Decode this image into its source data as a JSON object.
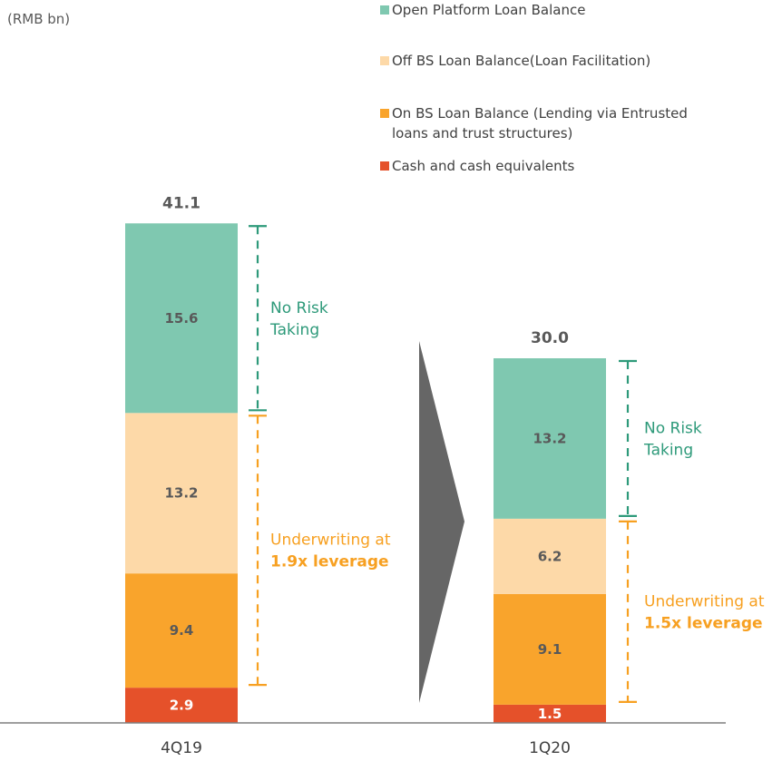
{
  "chart_data": {
    "type": "bar",
    "stacked": true,
    "unit_label": "(RMB bn)",
    "categories": [
      "4Q19",
      "1Q20"
    ],
    "totals": [
      "41.1",
      "30.0"
    ],
    "series": [
      {
        "name": "Cash and cash equivalents",
        "color": "#e5512a",
        "values": [
          2.9,
          1.5
        ],
        "labels": [
          "2.9",
          "1.5"
        ]
      },
      {
        "name": "On BS Loan Balance (Lending via Entrusted loans and trust structures)",
        "color": "#f9a42c",
        "values": [
          9.4,
          9.1
        ],
        "labels": [
          "9.4",
          "9.1"
        ]
      },
      {
        "name": "Off BS Loan Balance(Loan Facilitation)",
        "color": "#fdd9a8",
        "values": [
          13.2,
          6.2
        ],
        "labels": [
          "13.2",
          "6.2"
        ]
      },
      {
        "name": "Open Platform Loan Balance",
        "color": "#7fc8b0",
        "values": [
          15.6,
          13.2
        ],
        "labels": [
          "15.6",
          "13.2"
        ]
      }
    ],
    "legend": {
      "position": "top-right",
      "entries": [
        {
          "lines": [
            "Open Platform Loan Balance"
          ],
          "color": "#7fc8b0"
        },
        {
          "lines": [
            "Off BS Loan Balance(Loan Facilitation)"
          ],
          "color": "#fdd9a8"
        },
        {
          "lines": [
            "On BS Loan Balance (Lending via Entrusted",
            "loans and trust structures)"
          ],
          "color": "#f9a42c"
        },
        {
          "lines": [
            "Cash and cash equivalents"
          ],
          "color": "#e5512a"
        }
      ]
    },
    "annotations": [
      {
        "bar": 0,
        "kind": "no-risk",
        "lines": [
          "No Risk",
          "Taking"
        ],
        "color": "#2e9a7a"
      },
      {
        "bar": 0,
        "kind": "underwriting",
        "lines": [
          "Underwriting at",
          "1.9x leverage"
        ],
        "color": "#f7a021"
      },
      {
        "bar": 1,
        "kind": "no-risk",
        "lines": [
          "No Risk",
          "Taking"
        ],
        "color": "#2e9a7a"
      },
      {
        "bar": 1,
        "kind": "underwriting",
        "lines": [
          "Underwriting at",
          "1.5x leverage"
        ],
        "color": "#f7a021"
      }
    ],
    "arrow": {
      "from": "4Q19",
      "to": "1Q20",
      "color": "#666666"
    },
    "grid": false
  }
}
